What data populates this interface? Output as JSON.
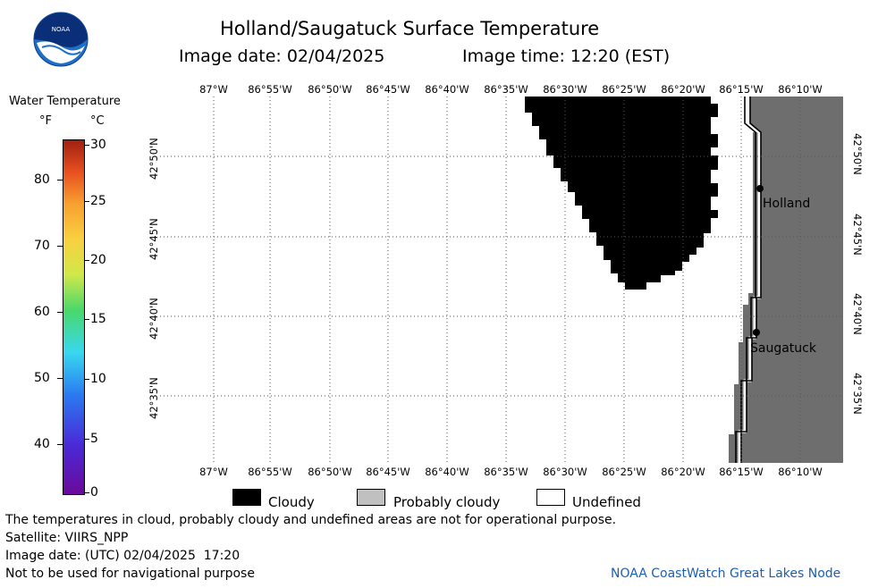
{
  "title": "Holland/Saugatuck Surface Temperature",
  "image_date_label": "Image date: 02/04/2025",
  "image_time_label": "Image time: 12:20 (EST)",
  "logo_text": "NOAA",
  "colorbar": {
    "title": "Water Temperature",
    "unit_f": "°F",
    "unit_c": "°C",
    "f_ticks": [
      "80",
      "70",
      "60",
      "50",
      "40"
    ],
    "c_ticks": [
      "30",
      "25",
      "20",
      "15",
      "10",
      "5",
      "0"
    ]
  },
  "lon_labels": [
    "87°W",
    "86°55'W",
    "86°50'W",
    "86°45'W",
    "86°40'W",
    "86°35'W",
    "86°30'W",
    "86°25'W",
    "86°20'W",
    "86°15'W",
    "86°10'W"
  ],
  "lat_labels": [
    "42°50'N",
    "42°45'N",
    "42°40'N",
    "42°35'N"
  ],
  "cities": [
    {
      "name": "Holland"
    },
    {
      "name": "Saugatuck"
    }
  ],
  "legend": {
    "cloudy": "Cloudy",
    "probably_cloudy": "Probably cloudy",
    "undefined": "Undefined"
  },
  "footer": {
    "disclaimer": "The temperatures in cloud, probably cloudy and undefined areas are not for operational purpose.",
    "satellite": "Satellite: VIIRS_NPP",
    "utc_date": "Image date: (UTC) 02/04/2025  17:20",
    "nav_warning": "Not to be used for navigational purpose",
    "credit": "NOAA CoastWatch Great Lakes Node"
  },
  "colors": {
    "cloudy": "#000000",
    "probably_cloudy": "#c0c0c0",
    "land": "#6e6e6e",
    "credit": "#1a5fb4"
  }
}
